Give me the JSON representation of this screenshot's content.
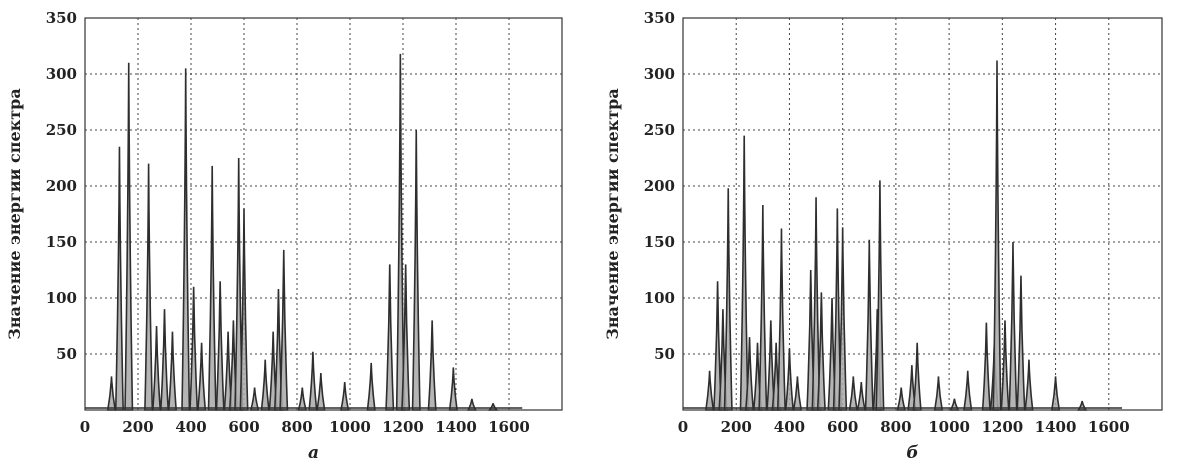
{
  "colors": {
    "fill": "#a8a8a8",
    "line": "#2e2e2e",
    "grid": "#444444"
  },
  "chart_data": [
    {
      "type": "area",
      "panel_label": "а",
      "ylabel": "Значение энергии спектра",
      "xlim": [
        0,
        1800
      ],
      "ylim": [
        0,
        350
      ],
      "grid": true,
      "xticks": [
        0,
        200,
        400,
        600,
        800,
        1000,
        1200,
        1400,
        1600
      ],
      "yticks": [
        50,
        100,
        150,
        200,
        250,
        300,
        350
      ],
      "peaks": [
        {
          "x": 100,
          "y": 30
        },
        {
          "x": 130,
          "y": 235
        },
        {
          "x": 165,
          "y": 310
        },
        {
          "x": 240,
          "y": 220
        },
        {
          "x": 270,
          "y": 75
        },
        {
          "x": 300,
          "y": 90
        },
        {
          "x": 330,
          "y": 70
        },
        {
          "x": 380,
          "y": 305
        },
        {
          "x": 410,
          "y": 110
        },
        {
          "x": 440,
          "y": 60
        },
        {
          "x": 480,
          "y": 218
        },
        {
          "x": 510,
          "y": 115
        },
        {
          "x": 540,
          "y": 70
        },
        {
          "x": 560,
          "y": 80
        },
        {
          "x": 580,
          "y": 225
        },
        {
          "x": 600,
          "y": 180
        },
        {
          "x": 640,
          "y": 20
        },
        {
          "x": 680,
          "y": 45
        },
        {
          "x": 710,
          "y": 70
        },
        {
          "x": 730,
          "y": 108
        },
        {
          "x": 750,
          "y": 143
        },
        {
          "x": 820,
          "y": 20
        },
        {
          "x": 860,
          "y": 52
        },
        {
          "x": 890,
          "y": 33
        },
        {
          "x": 980,
          "y": 25
        },
        {
          "x": 1080,
          "y": 42
        },
        {
          "x": 1150,
          "y": 130
        },
        {
          "x": 1190,
          "y": 318
        },
        {
          "x": 1210,
          "y": 130
        },
        {
          "x": 1250,
          "y": 250
        },
        {
          "x": 1310,
          "y": 80
        },
        {
          "x": 1390,
          "y": 38
        },
        {
          "x": 1460,
          "y": 10
        },
        {
          "x": 1540,
          "y": 6
        }
      ]
    },
    {
      "type": "area",
      "panel_label": "б",
      "ylabel": "Значение энергии спектра",
      "xlim": [
        0,
        1800
      ],
      "ylim": [
        0,
        350
      ],
      "grid": true,
      "xticks": [
        0,
        200,
        400,
        600,
        800,
        1000,
        1200,
        1400,
        1600
      ],
      "yticks": [
        50,
        100,
        150,
        200,
        250,
        300,
        350
      ],
      "peaks": [
        {
          "x": 100,
          "y": 35
        },
        {
          "x": 130,
          "y": 115
        },
        {
          "x": 150,
          "y": 90
        },
        {
          "x": 170,
          "y": 198
        },
        {
          "x": 230,
          "y": 245
        },
        {
          "x": 250,
          "y": 65
        },
        {
          "x": 280,
          "y": 60
        },
        {
          "x": 300,
          "y": 183
        },
        {
          "x": 330,
          "y": 80
        },
        {
          "x": 350,
          "y": 60
        },
        {
          "x": 370,
          "y": 162
        },
        {
          "x": 400,
          "y": 55
        },
        {
          "x": 430,
          "y": 30
        },
        {
          "x": 480,
          "y": 125
        },
        {
          "x": 500,
          "y": 190
        },
        {
          "x": 520,
          "y": 105
        },
        {
          "x": 560,
          "y": 100
        },
        {
          "x": 580,
          "y": 180
        },
        {
          "x": 600,
          "y": 163
        },
        {
          "x": 640,
          "y": 30
        },
        {
          "x": 670,
          "y": 25
        },
        {
          "x": 700,
          "y": 152
        },
        {
          "x": 730,
          "y": 90
        },
        {
          "x": 740,
          "y": 205
        },
        {
          "x": 820,
          "y": 20
        },
        {
          "x": 860,
          "y": 40
        },
        {
          "x": 880,
          "y": 60
        },
        {
          "x": 960,
          "y": 30
        },
        {
          "x": 1020,
          "y": 10
        },
        {
          "x": 1070,
          "y": 35
        },
        {
          "x": 1140,
          "y": 78
        },
        {
          "x": 1170,
          "y": 60
        },
        {
          "x": 1180,
          "y": 312
        },
        {
          "x": 1210,
          "y": 80
        },
        {
          "x": 1240,
          "y": 150
        },
        {
          "x": 1270,
          "y": 120
        },
        {
          "x": 1300,
          "y": 45
        },
        {
          "x": 1400,
          "y": 30
        },
        {
          "x": 1500,
          "y": 8
        }
      ]
    }
  ]
}
